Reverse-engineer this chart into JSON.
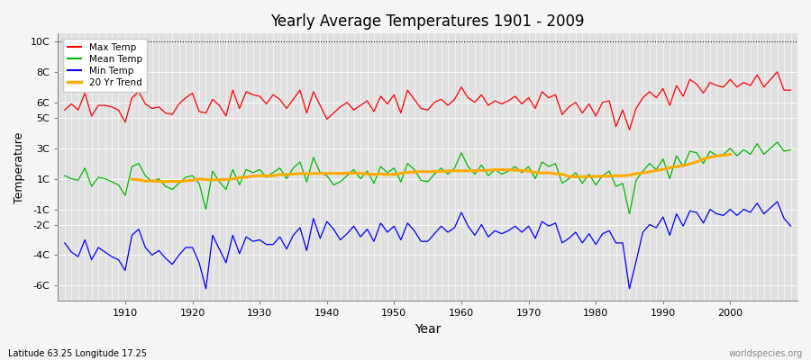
{
  "years": [
    1901,
    1902,
    1903,
    1904,
    1905,
    1906,
    1907,
    1908,
    1909,
    1910,
    1911,
    1912,
    1913,
    1914,
    1915,
    1916,
    1917,
    1918,
    1919,
    1920,
    1921,
    1922,
    1923,
    1924,
    1925,
    1926,
    1927,
    1928,
    1929,
    1930,
    1931,
    1932,
    1933,
    1934,
    1935,
    1936,
    1937,
    1938,
    1939,
    1940,
    1941,
    1942,
    1943,
    1944,
    1945,
    1946,
    1947,
    1948,
    1949,
    1950,
    1951,
    1952,
    1953,
    1954,
    1955,
    1956,
    1957,
    1958,
    1959,
    1960,
    1961,
    1962,
    1963,
    1964,
    1965,
    1966,
    1967,
    1968,
    1969,
    1970,
    1971,
    1972,
    1973,
    1974,
    1975,
    1976,
    1977,
    1978,
    1979,
    1980,
    1981,
    1982,
    1983,
    1984,
    1985,
    1986,
    1987,
    1988,
    1989,
    1990,
    1991,
    1992,
    1993,
    1994,
    1995,
    1996,
    1997,
    1998,
    1999,
    2000,
    2001,
    2002,
    2003,
    2004,
    2005,
    2006,
    2007,
    2008,
    2009
  ],
  "max_temp": [
    5.5,
    5.9,
    5.5,
    6.6,
    5.1,
    5.8,
    5.8,
    5.7,
    5.5,
    4.7,
    6.3,
    6.7,
    5.9,
    5.6,
    5.7,
    5.3,
    5.2,
    5.9,
    6.3,
    6.6,
    5.4,
    5.3,
    6.2,
    5.8,
    5.1,
    6.8,
    5.6,
    6.7,
    6.5,
    6.4,
    5.9,
    6.5,
    6.2,
    5.6,
    6.2,
    6.8,
    5.3,
    6.7,
    5.8,
    4.9,
    5.3,
    5.7,
    6.0,
    5.5,
    5.8,
    6.1,
    5.4,
    6.4,
    5.9,
    6.5,
    5.3,
    6.8,
    6.2,
    5.6,
    5.5,
    6.0,
    6.2,
    5.8,
    6.2,
    7.0,
    6.3,
    6.0,
    6.5,
    5.8,
    6.1,
    5.9,
    6.1,
    6.4,
    5.9,
    6.3,
    5.6,
    6.7,
    6.3,
    6.5,
    5.2,
    5.7,
    6.0,
    5.3,
    5.9,
    5.1,
    6.0,
    6.1,
    4.4,
    5.5,
    4.2,
    5.6,
    6.3,
    6.7,
    6.3,
    6.9,
    5.8,
    7.1,
    6.4,
    7.5,
    7.2,
    6.6,
    7.3,
    7.1,
    7.0,
    7.5,
    7.0,
    7.3,
    7.1,
    7.8,
    7.0,
    7.5,
    8.0,
    6.8,
    6.8
  ],
  "mean_temp": [
    1.2,
    1.0,
    0.9,
    1.7,
    0.5,
    1.1,
    1.0,
    0.8,
    0.6,
    -0.1,
    1.8,
    2.0,
    1.2,
    0.8,
    1.0,
    0.5,
    0.3,
    0.7,
    1.1,
    1.2,
    0.7,
    -1.0,
    1.5,
    0.8,
    0.3,
    1.6,
    0.6,
    1.6,
    1.4,
    1.6,
    1.1,
    1.4,
    1.7,
    1.0,
    1.7,
    2.1,
    0.8,
    2.4,
    1.4,
    1.2,
    0.6,
    0.8,
    1.2,
    1.6,
    1.0,
    1.5,
    0.7,
    1.8,
    1.4,
    1.7,
    0.8,
    2.0,
    1.6,
    0.9,
    0.8,
    1.3,
    1.7,
    1.3,
    1.7,
    2.7,
    1.8,
    1.3,
    1.9,
    1.2,
    1.6,
    1.3,
    1.5,
    1.8,
    1.4,
    1.8,
    1.0,
    2.1,
    1.8,
    2.0,
    0.7,
    1.0,
    1.4,
    0.7,
    1.3,
    0.6,
    1.2,
    1.5,
    0.5,
    0.7,
    -1.3,
    0.9,
    1.5,
    2.0,
    1.6,
    2.3,
    1.0,
    2.5,
    1.8,
    2.8,
    2.7,
    2.0,
    2.8,
    2.5,
    2.6,
    3.0,
    2.5,
    2.9,
    2.6,
    3.3,
    2.6,
    3.0,
    3.4,
    2.8,
    2.9
  ],
  "min_temp": [
    -3.2,
    -3.8,
    -4.1,
    -3.0,
    -4.3,
    -3.5,
    -3.8,
    -4.1,
    -4.3,
    -5.0,
    -2.7,
    -2.3,
    -3.5,
    -4.0,
    -3.7,
    -4.2,
    -4.6,
    -4.0,
    -3.5,
    -3.5,
    -4.5,
    -6.2,
    -2.7,
    -3.6,
    -4.5,
    -2.7,
    -3.9,
    -2.8,
    -3.1,
    -3.0,
    -3.3,
    -3.3,
    -2.8,
    -3.6,
    -2.7,
    -2.2,
    -3.7,
    -1.6,
    -2.9,
    -1.8,
    -2.3,
    -3.0,
    -2.6,
    -2.1,
    -2.8,
    -2.3,
    -3.1,
    -1.9,
    -2.5,
    -2.1,
    -3.0,
    -1.9,
    -2.4,
    -3.1,
    -3.1,
    -2.6,
    -2.1,
    -2.5,
    -2.2,
    -1.2,
    -2.1,
    -2.7,
    -2.0,
    -2.8,
    -2.4,
    -2.6,
    -2.4,
    -2.1,
    -2.5,
    -2.1,
    -2.9,
    -1.8,
    -2.1,
    -1.9,
    -3.2,
    -2.9,
    -2.5,
    -3.2,
    -2.6,
    -3.3,
    -2.6,
    -2.4,
    -3.2,
    -3.2,
    -6.2,
    -4.4,
    -2.5,
    -2.0,
    -2.2,
    -1.5,
    -2.7,
    -1.3,
    -2.1,
    -1.1,
    -1.2,
    -1.9,
    -1.0,
    -1.3,
    -1.4,
    -1.0,
    -1.4,
    -1.0,
    -1.2,
    -0.6,
    -1.3,
    -0.9,
    -0.5,
    -1.6,
    -2.1
  ],
  "title": "Yearly Average Temperatures 1901 - 2009",
  "xlabel": "Year",
  "ylabel": "Temperature",
  "ylim": [
    -7.0,
    10.5
  ],
  "ytick_positions": [
    10,
    8,
    6,
    5,
    3,
    1,
    -1,
    -2,
    -4,
    -6
  ],
  "ytick_labels": [
    "10C",
    "8C",
    "6C",
    "5C",
    "3C",
    "1C",
    "-1C",
    "-2C",
    "-4C",
    "-6C"
  ],
  "bg_color": "#e0e0e0",
  "plot_bg_color": "#e0e0e0",
  "fig_bg_color": "#f5f5f5",
  "grid_color": "#ffffff",
  "max_color": "#ff0000",
  "mean_color": "#00bb00",
  "min_color": "#0000ff",
  "trend_color": "#ffaa00",
  "subtitle": "Latitude 63.25 Longitude 17.25",
  "watermark": "worldspecies.org",
  "xlim": [
    1900,
    2010
  ],
  "xticks": [
    1910,
    1920,
    1930,
    1940,
    1950,
    1960,
    1970,
    1980,
    1990,
    2000
  ]
}
